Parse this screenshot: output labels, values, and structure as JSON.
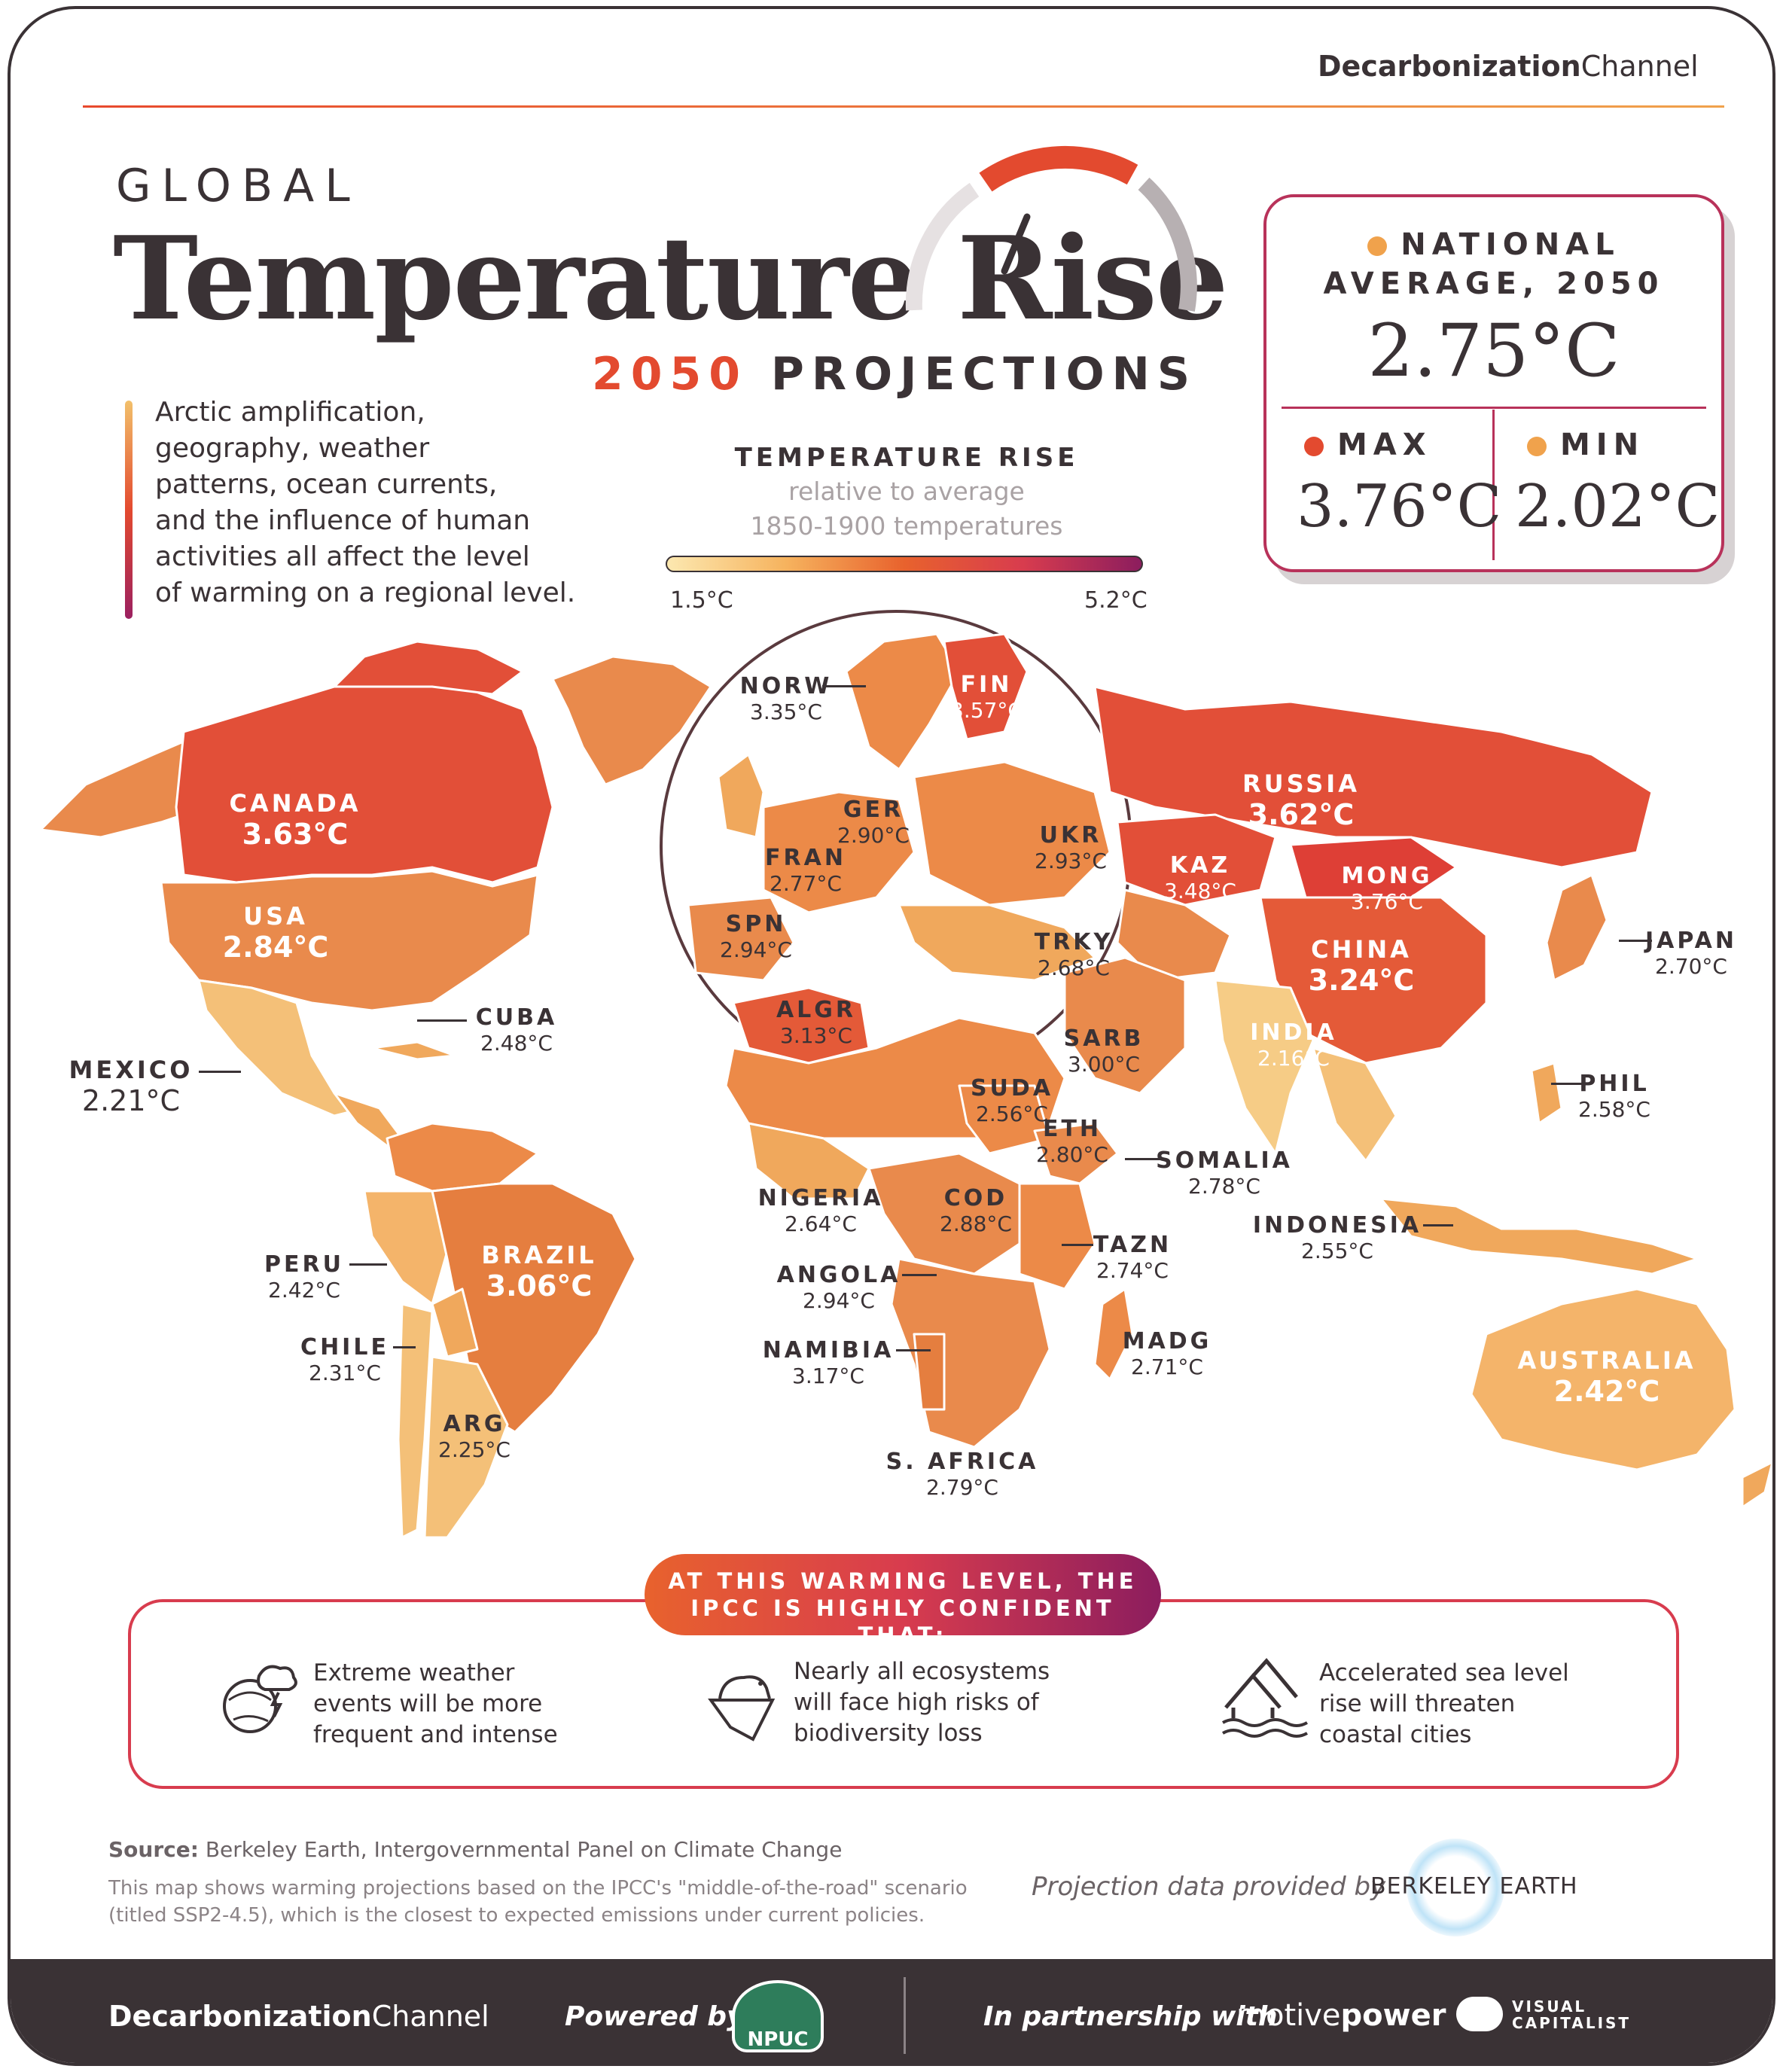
{
  "brand": {
    "bold": "Decarbonization",
    "light": "Channel"
  },
  "header": {
    "kicker": "GLOBAL",
    "title": "Temperature Rise",
    "subtitle_year": "2050",
    "subtitle_rest": "PROJECTIONS"
  },
  "intro": {
    "lines": [
      "Arctic amplification,",
      "geography, weather",
      "patterns, ocean currents,",
      "and the influence of human",
      "activities all affect the level",
      "of warming on a regional level."
    ]
  },
  "legend": {
    "title": "TEMPERATURE RISE",
    "sub1": "relative to average",
    "sub2": "1850-1900 temperatures",
    "min": "1.5°C",
    "max": "5.2°C"
  },
  "stats": {
    "avg_label1": "NATIONAL",
    "avg_label2": "AVERAGE, 2050",
    "avg_value": "2.75°C",
    "max_label": "MAX",
    "max_value": "3.76°C",
    "min_label": "MIN",
    "min_value": "2.02°C",
    "max_color": "#e34a2f",
    "min_color": "#f0a24c"
  },
  "countries": {
    "canada": {
      "name": "CANADA",
      "value": "3.63°C"
    },
    "usa": {
      "name": "USA",
      "value": "2.84°C"
    },
    "mexico": {
      "name": "MEXICO",
      "value": "2.21°C"
    },
    "cuba": {
      "name": "CUBA",
      "value": "2.48°C"
    },
    "brazil": {
      "name": "BRAZIL",
      "value": "3.06°C"
    },
    "peru": {
      "name": "PERU",
      "value": "2.42°C"
    },
    "chile": {
      "name": "CHILE",
      "value": "2.31°C"
    },
    "arg": {
      "name": "ARG",
      "value": "2.25°C"
    },
    "norw": {
      "name": "NORW",
      "value": "3.35°C"
    },
    "fin": {
      "name": "FIN",
      "value": "3.57°C"
    },
    "ger": {
      "name": "GER",
      "value": "2.90°C"
    },
    "fran": {
      "name": "FRAN",
      "value": "2.77°C"
    },
    "spn": {
      "name": "SPN",
      "value": "2.94°C"
    },
    "ukr": {
      "name": "UKR",
      "value": "2.93°C"
    },
    "trky": {
      "name": "TRKY",
      "value": "2.68°C"
    },
    "algr": {
      "name": "ALGR",
      "value": "3.13°C"
    },
    "russia": {
      "name": "RUSSIA",
      "value": "3.62°C"
    },
    "kaz": {
      "name": "KAZ",
      "value": "3.48°C"
    },
    "mong": {
      "name": "MONG",
      "value": "3.76°C"
    },
    "china": {
      "name": "CHINA",
      "value": "3.24°C"
    },
    "japan": {
      "name": "JAPAN",
      "value": "2.70°C"
    },
    "india": {
      "name": "INDIA",
      "value": "2.16°C"
    },
    "sarb": {
      "name": "SARB",
      "value": "3.00°C"
    },
    "phil": {
      "name": "PHIL",
      "value": "2.58°C"
    },
    "suda": {
      "name": "SUDA",
      "value": "2.56°C"
    },
    "eth": {
      "name": "ETH",
      "value": "2.80°C"
    },
    "somalia": {
      "name": "SOMALIA",
      "value": "2.78°C"
    },
    "nigeria": {
      "name": "NIGERIA",
      "value": "2.64°C"
    },
    "cod": {
      "name": "COD",
      "value": "2.88°C"
    },
    "tazn": {
      "name": "TAZN",
      "value": "2.74°C"
    },
    "angola": {
      "name": "ANGOLA",
      "value": "2.94°C"
    },
    "namibia": {
      "name": "NAMIBIA",
      "value": "3.17°C"
    },
    "madg": {
      "name": "MADG",
      "value": "2.71°C"
    },
    "safrica": {
      "name": "S. AFRICA",
      "value": "2.79°C"
    },
    "indonesia": {
      "name": "INDONESIA",
      "value": "2.55°C"
    },
    "australia": {
      "name": "AUSTRALIA",
      "value": "2.42°C"
    }
  },
  "banner": {
    "line1": "AT THIS WARMING LEVEL, THE",
    "line2_a": "IPCC IS ",
    "line2_b": "HIGHLY CONFIDENT",
    "line2_c": " THAT:"
  },
  "impacts": [
    {
      "icon": "storm-globe-icon",
      "lines": [
        "Extreme weather",
        "events will be more",
        "frequent and intense"
      ]
    },
    {
      "icon": "polar-bear-icon",
      "lines": [
        "Nearly all ecosystems",
        "will face high risks of",
        "biodiversity loss"
      ]
    },
    {
      "icon": "flooded-house-icon",
      "lines": [
        "Accelerated sea level",
        "rise will threaten",
        "coastal cities"
      ]
    }
  ],
  "source": {
    "label": "Source:",
    "text": "Berkeley Earth, Intergovernmental Panel on Climate Change",
    "note1": "This map shows warming projections based on the IPCC's \"middle-of-the-road\" scenario",
    "note2": "(titled SSP2-4.5), which is the closest to expected emissions under current policies.",
    "provided": "Projection data provided by",
    "provider": "BERKELEY EARTH"
  },
  "footer": {
    "powered": "Powered by",
    "npuc": "NPUC",
    "partnership": "In partnership with",
    "motive_a": "motive",
    "motive_b": "power",
    "vc1": "VISUAL",
    "vc2": "CAPITALIST"
  },
  "colors": {
    "accent_red": "#e34a2f",
    "accent_magenta": "#b8325a",
    "dark": "#3a3235"
  }
}
